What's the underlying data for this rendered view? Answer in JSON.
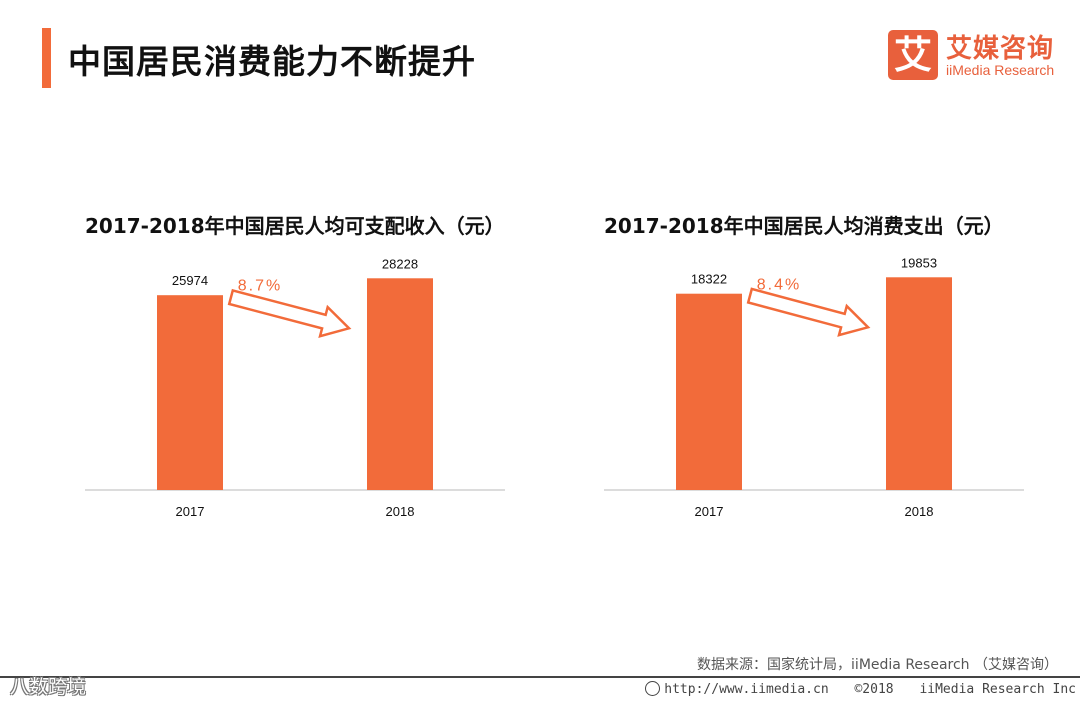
{
  "page": {
    "title": "中国居民消费能力不断提升",
    "accent_color": "#F26B3A"
  },
  "brand": {
    "mark": "艾",
    "name_cn": "艾媒咨询",
    "name_en": "iiMedia Research",
    "color": "#E8603C"
  },
  "chart_data": [
    {
      "type": "bar",
      "title": "2017-2018年中国居民人均可支配收入（元）",
      "categories": [
        "2017",
        "2018"
      ],
      "values": [
        25974,
        28228
      ],
      "ylim": [
        0,
        30000
      ],
      "growth_label": "8.7%",
      "bar_color": "#F26B3A"
    },
    {
      "type": "bar",
      "title": "2017-2018年中国居民人均消费支出（元）",
      "categories": [
        "2017",
        "2018"
      ],
      "values": [
        18322,
        19853
      ],
      "ylim": [
        0,
        21000
      ],
      "growth_label": "8.4%",
      "bar_color": "#F26B3A"
    }
  ],
  "source": {
    "text": "数据来源：国家统计局，iiMedia Research （艾媒咨询）"
  },
  "footer": {
    "watermark": "八数跨境",
    "url": "http://www.iimedia.cn",
    "copyright": "©2018",
    "company": "iiMedia Research Inc"
  }
}
